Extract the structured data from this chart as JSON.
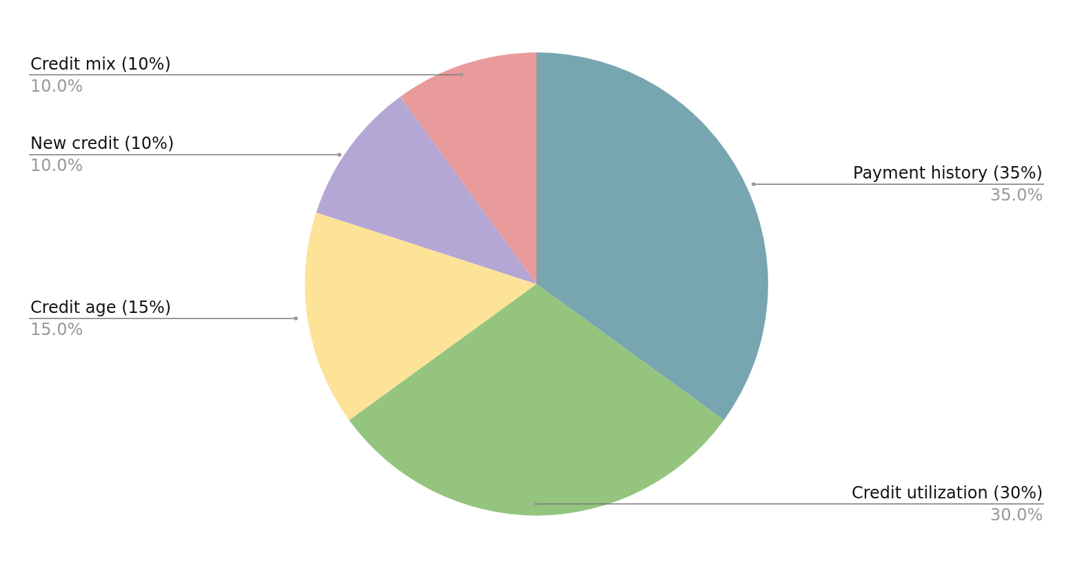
{
  "chart_data": {
    "type": "pie",
    "categories": [
      "Payment history (35%)",
      "Credit utilization (30%)",
      "Credit age (15%)",
      "New credit (10%)",
      "Credit mix (10%)"
    ],
    "values": [
      35,
      30,
      15,
      10,
      10
    ],
    "value_labels": [
      "35.0%",
      "30.0%",
      "15.0%",
      "10.0%",
      "10.0%"
    ],
    "colors": [
      "#77a5b0",
      "#94c47d",
      "#fde398",
      "#b4a7d6",
      "#e99a9a"
    ]
  }
}
